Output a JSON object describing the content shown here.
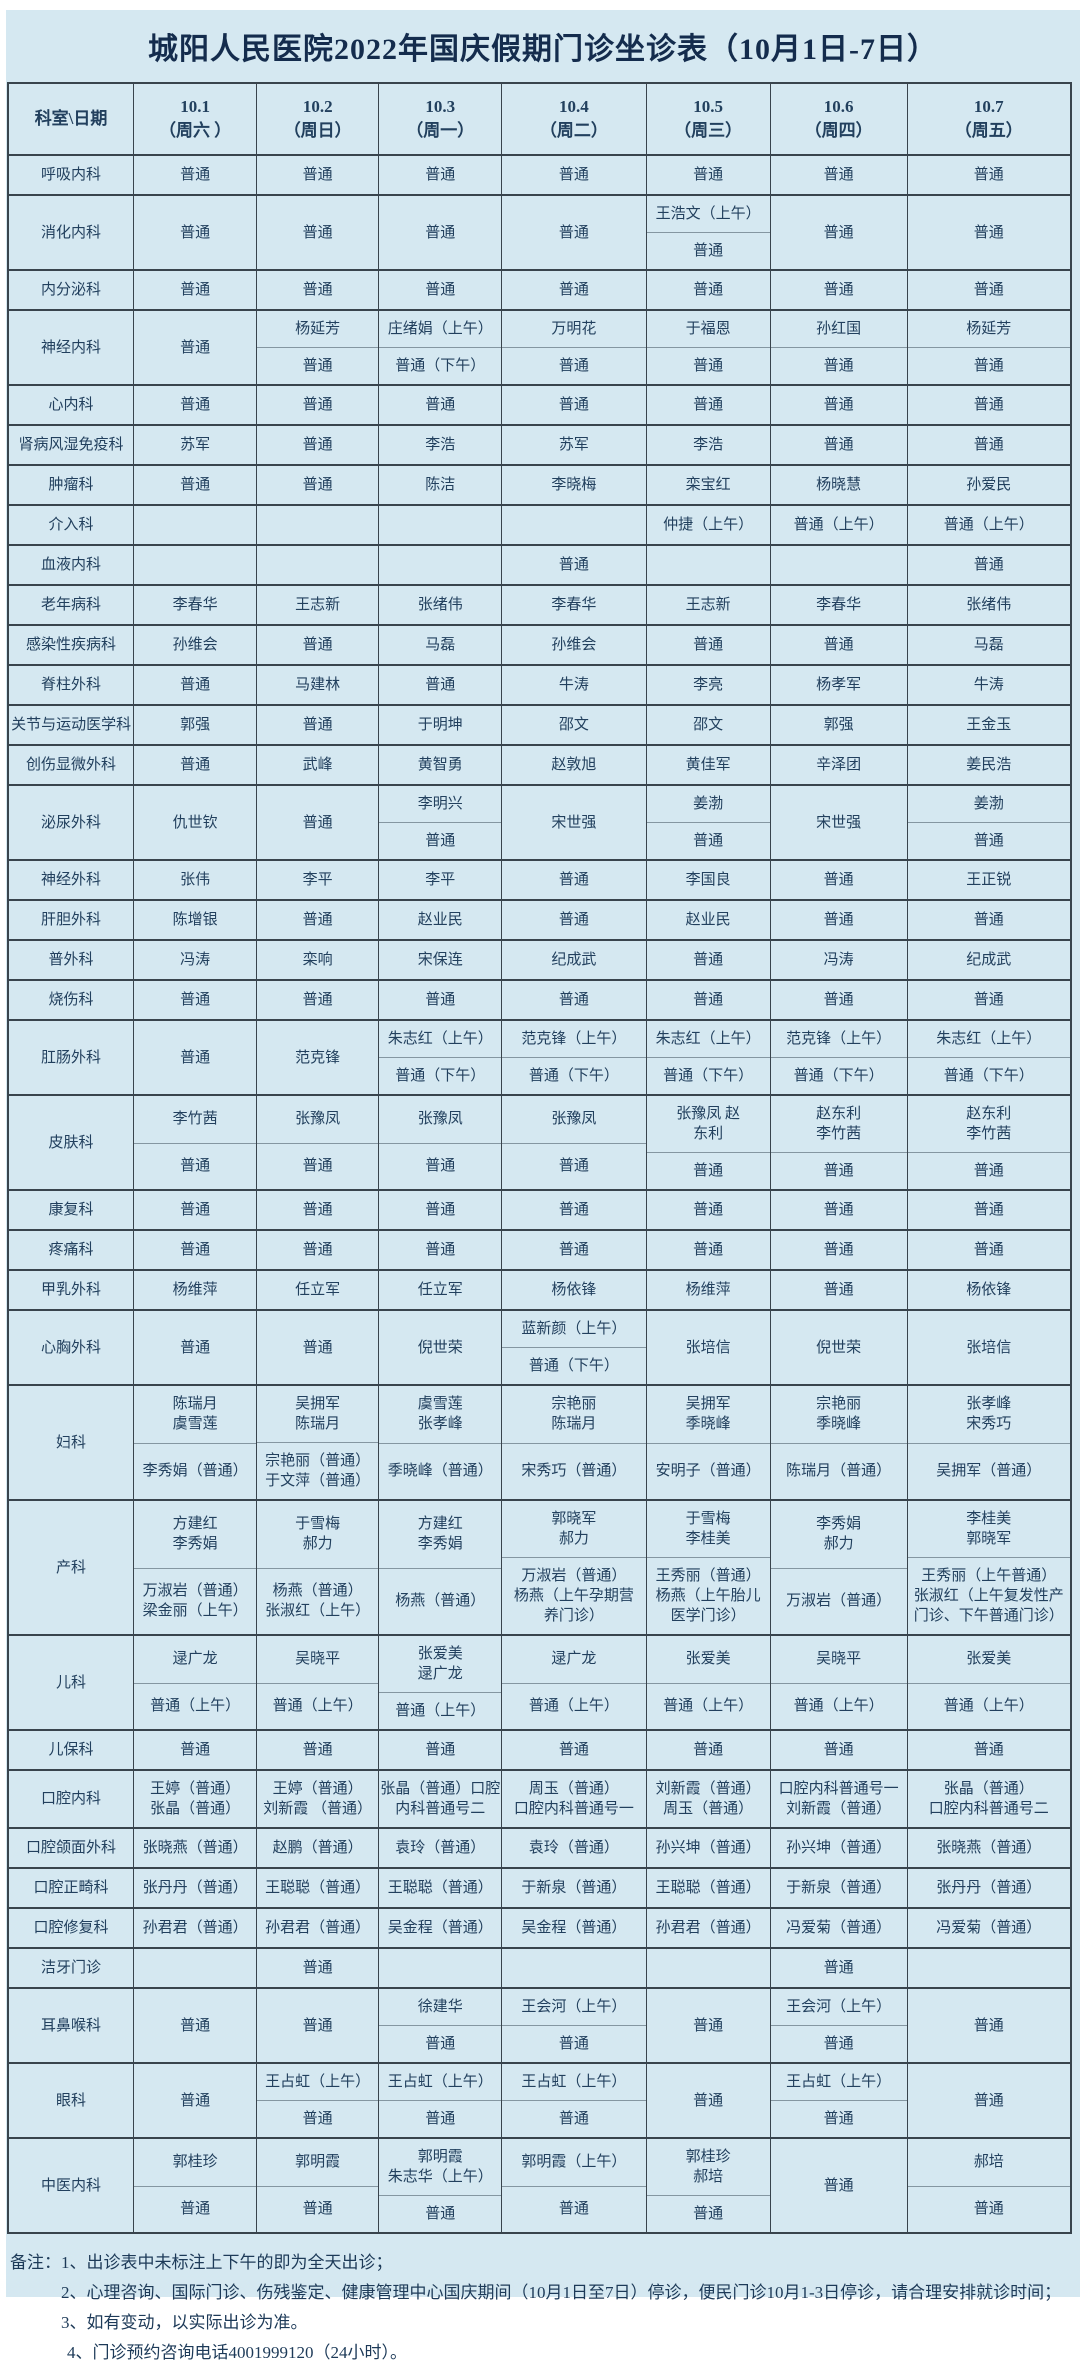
{
  "title": "城阳人民医院2022年国庆假期门诊坐诊表（10月1日-7日）",
  "colors": {
    "background": "#d5e8f1",
    "text": "#22405e",
    "title_text": "#142c4d",
    "border_dark": "#39444d",
    "border_split": "#8496a1"
  },
  "table": {
    "corner_header": "科室\\日期",
    "date_headers": [
      {
        "date": "10.1",
        "week": "（周六 ）"
      },
      {
        "date": "10.2",
        "week": "（周日）"
      },
      {
        "date": "10.3",
        "week": "（周一）"
      },
      {
        "date": "10.4",
        "week": "（周二）"
      },
      {
        "date": "10.5",
        "week": "（周三）"
      },
      {
        "date": "10.6",
        "week": "（周四）"
      },
      {
        "date": "10.7",
        "week": "（周五）"
      }
    ],
    "rows": [
      {
        "dept": "呼吸内科",
        "cells": [
          "普通",
          "普通",
          "普通",
          "普通",
          "普通",
          "普通",
          "普通"
        ]
      },
      {
        "dept": "消化内科",
        "cells": [
          "普通",
          "普通",
          "普通",
          "普通",
          {
            "split": [
              "王浩文（上午）",
              "普通"
            ]
          },
          "普通",
          "普通"
        ]
      },
      {
        "dept": "内分泌科",
        "cells": [
          "普通",
          "普通",
          "普通",
          "普通",
          "普通",
          "普通",
          "普通"
        ]
      },
      {
        "dept": "神经内科",
        "cells": [
          "普通",
          {
            "split": [
              "杨延芳",
              "普通"
            ]
          },
          {
            "split": [
              "庄绪娟（上午）",
              "普通（下午）"
            ]
          },
          {
            "split": [
              "万明花",
              "普通"
            ]
          },
          {
            "split": [
              "于福恩",
              "普通"
            ]
          },
          {
            "split": [
              "孙红国",
              "普通"
            ]
          },
          {
            "split": [
              "杨延芳",
              "普通"
            ]
          }
        ]
      },
      {
        "dept": "心内科",
        "cells": [
          "普通",
          "普通",
          "普通",
          "普通",
          "普通",
          "普通",
          "普通"
        ]
      },
      {
        "dept": "肾病风湿免疫科",
        "cells": [
          "苏军",
          "普通",
          "李浩",
          "苏军",
          "李浩",
          "普通",
          "普通"
        ]
      },
      {
        "dept": "肿瘤科",
        "cells": [
          "普通",
          "普通",
          "陈洁",
          "李晓梅",
          "栾宝红",
          "杨晓慧",
          "孙爱民"
        ]
      },
      {
        "dept": "介入科",
        "cells": [
          "",
          "",
          "",
          "",
          "仲捷（上午）",
          "普通（上午）",
          "普通（上午）"
        ]
      },
      {
        "dept": "血液内科",
        "cells": [
          "",
          "",
          "",
          "普通",
          "",
          "",
          "普通"
        ]
      },
      {
        "dept": "老年病科",
        "cells": [
          "李春华",
          "王志新",
          "张绪伟",
          "李春华",
          "王志新",
          "李春华",
          "张绪伟"
        ]
      },
      {
        "dept": "感染性疾病科",
        "cells": [
          "孙维会",
          "普通",
          "马磊",
          "孙维会",
          "普通",
          "普通",
          "马磊"
        ]
      },
      {
        "dept": "脊柱外科",
        "cells": [
          "普通",
          "马建林",
          "普通",
          "牛涛",
          "李亮",
          "杨孝军",
          "牛涛"
        ]
      },
      {
        "dept": "关节与运动医学科",
        "cells": [
          "郭强",
          "普通",
          "于明坤",
          "邵文",
          "邵文",
          "郭强",
          "王金玉"
        ]
      },
      {
        "dept": "创伤显微外科",
        "cells": [
          "普通",
          "武峰",
          "黄智勇",
          "赵敦旭",
          "黄佳军",
          "辛泽团",
          "姜民浩"
        ]
      },
      {
        "dept": "泌尿外科",
        "cells": [
          "仇世钦",
          "普通",
          {
            "split": [
              "李明兴",
              "普通"
            ]
          },
          "宋世强",
          {
            "split": [
              "姜渤",
              "普通"
            ]
          },
          "宋世强",
          {
            "split": [
              "姜渤",
              "普通"
            ]
          }
        ]
      },
      {
        "dept": "神经外科",
        "cells": [
          "张伟",
          "李平",
          "李平",
          "普通",
          "李国良",
          "普通",
          "王正锐"
        ]
      },
      {
        "dept": "肝胆外科",
        "cells": [
          "陈增银",
          "普通",
          "赵业民",
          "普通",
          "赵业民",
          "普通",
          "普通"
        ]
      },
      {
        "dept": "普外科",
        "cells": [
          "冯涛",
          "栾响",
          "宋保连",
          "纪成武",
          "普通",
          "冯涛",
          "纪成武"
        ]
      },
      {
        "dept": "烧伤科",
        "cells": [
          "普通",
          "普通",
          "普通",
          "普通",
          "普通",
          "普通",
          "普通"
        ]
      },
      {
        "dept": "肛肠外科",
        "cells": [
          "普通",
          "范克锋",
          {
            "split": [
              "朱志红（上午）",
              "普通（下午）"
            ]
          },
          {
            "split": [
              "范克锋（上午）",
              "普通（下午）"
            ]
          },
          {
            "split": [
              "朱志红（上午）",
              "普通（下午）"
            ]
          },
          {
            "split": [
              "范克锋（上午）",
              "普通（下午）"
            ]
          },
          {
            "split": [
              "朱志红（上午）",
              "普通（下午）"
            ]
          }
        ]
      },
      {
        "dept": "皮肤科",
        "cells": [
          {
            "split": [
              "李竹茜",
              "普通"
            ]
          },
          {
            "split": [
              "张豫凤",
              "普通"
            ]
          },
          {
            "split": [
              "张豫凤",
              "普通"
            ]
          },
          {
            "split": [
              "张豫凤",
              "普通"
            ]
          },
          {
            "split": [
              "张豫凤 赵\n东利",
              "普通"
            ]
          },
          {
            "split": [
              "赵东利\n李竹茜",
              "普通"
            ]
          },
          {
            "split": [
              "赵东利\n李竹茜",
              "普通"
            ]
          }
        ]
      },
      {
        "dept": "康复科",
        "cells": [
          "普通",
          "普通",
          "普通",
          "普通",
          "普通",
          "普通",
          "普通"
        ]
      },
      {
        "dept": "疼痛科",
        "cells": [
          "普通",
          "普通",
          "普通",
          "普通",
          "普通",
          "普通",
          "普通"
        ]
      },
      {
        "dept": "甲乳外科",
        "cells": [
          "杨维萍",
          "任立军",
          "任立军",
          "杨依锋",
          "杨维萍",
          "普通",
          "杨依锋"
        ]
      },
      {
        "dept": "心胸外科",
        "cells": [
          "普通",
          "普通",
          "倪世荣",
          {
            "split": [
              "蓝新颜（上午）",
              "普通（下午）"
            ]
          },
          "张培信",
          "倪世荣",
          "张培信"
        ]
      },
      {
        "dept": "妇科",
        "cells": [
          {
            "split": [
              "陈瑞月\n虞雪莲",
              "李秀娟（普通）"
            ]
          },
          {
            "split": [
              "吴拥军\n陈瑞月",
              "宗艳丽（普通）\n于文萍（普通）"
            ]
          },
          {
            "split": [
              "虞雪莲\n张孝峰",
              "季晓峰（普通）"
            ]
          },
          {
            "split": [
              "宗艳丽\n陈瑞月",
              "宋秀巧（普通）"
            ]
          },
          {
            "split": [
              "吴拥军\n季晓峰",
              "安明子（普通）"
            ]
          },
          {
            "split": [
              "宗艳丽\n季晓峰",
              "陈瑞月（普通）"
            ]
          },
          {
            "split": [
              "张孝峰\n宋秀巧",
              "吴拥军（普通）"
            ]
          }
        ]
      },
      {
        "dept": "产科",
        "cells": [
          {
            "split": [
              "方建红\n李秀娟",
              "万淑岩（普通）\n梁金丽（上午）"
            ]
          },
          {
            "split": [
              "于雪梅\n郝力",
              "杨燕（普通）\n张淑红（上午）"
            ]
          },
          {
            "split": [
              "方建红\n李秀娟",
              "杨燕（普通）"
            ]
          },
          {
            "split": [
              "郭晓军\n郝力",
              "万淑岩（普通）\n杨燕（上午孕期营\n养门诊）"
            ]
          },
          {
            "split": [
              "于雪梅\n李桂美",
              "王秀丽（普通）\n杨燕（上午胎儿\n医学门诊）"
            ]
          },
          {
            "split": [
              "李秀娟\n郝力",
              "万淑岩（普通）"
            ]
          },
          {
            "split": [
              "李桂美\n郭晓军",
              "王秀丽（上午普通）\n张淑红（上午复发性产\n门诊、下午普通门诊）"
            ]
          }
        ]
      },
      {
        "dept": "儿科",
        "cells": [
          {
            "split": [
              "逯广龙",
              "普通（上午）"
            ]
          },
          {
            "split": [
              "吴晓平",
              "普通（上午）"
            ]
          },
          {
            "split": [
              "张爱美\n逯广龙",
              "普通（上午）"
            ]
          },
          {
            "split": [
              "逯广龙",
              "普通（上午）"
            ]
          },
          {
            "split": [
              "张爱美",
              "普通（上午）"
            ]
          },
          {
            "split": [
              "吴晓平",
              "普通（上午）"
            ]
          },
          {
            "split": [
              "张爱美",
              "普通（上午）"
            ]
          }
        ]
      },
      {
        "dept": "儿保科",
        "cells": [
          "普通",
          "普通",
          "普通",
          "普通",
          "普通",
          "普通",
          "普通"
        ]
      },
      {
        "dept": "口腔内科",
        "cells": [
          "王婷（普通）\n张晶（普通）",
          "王婷（普通）\n刘新霞 （普通）",
          "张晶（普通）口腔\n内科普通号二",
          "周玉（普通）\n口腔内科普通号一",
          "刘新霞（普通）\n周玉（普通）",
          "口腔内科普通号一\n刘新霞（普通）",
          "张晶（普通）\n口腔内科普通号二"
        ]
      },
      {
        "dept": "口腔颌面外科",
        "cells": [
          "张晓燕（普通）",
          "赵鹏（普通）",
          "袁玲（普通）",
          "袁玲（普通）",
          "孙兴坤（普通）",
          "孙兴坤（普通）",
          "张晓燕（普通）"
        ]
      },
      {
        "dept": "口腔正畸科",
        "cells": [
          "张丹丹（普通）",
          "王聪聪（普通）",
          "王聪聪（普通）",
          "于新泉（普通）",
          "王聪聪（普通）",
          "于新泉（普通）",
          "张丹丹（普通）"
        ]
      },
      {
        "dept": "口腔修复科",
        "cells": [
          "孙君君（普通）",
          "孙君君（普通）",
          "吴金程（普通）",
          "吴金程（普通）",
          "孙君君（普通）",
          "冯爱菊（普通）",
          "冯爱菊（普通）"
        ]
      },
      {
        "dept": "洁牙门诊",
        "cells": [
          "",
          "普通",
          "",
          "",
          "",
          "普通",
          ""
        ]
      },
      {
        "dept": "耳鼻喉科",
        "cells": [
          "普通",
          "普通",
          {
            "split": [
              "徐建华",
              "普通"
            ]
          },
          {
            "split": [
              "王会河（上午）",
              "普通"
            ]
          },
          "普通",
          {
            "split": [
              "王会河（上午）",
              "普通"
            ]
          },
          "普通"
        ]
      },
      {
        "dept": "眼科",
        "cells": [
          "普通",
          {
            "split": [
              "王占虹（上午）",
              "普通"
            ]
          },
          {
            "split": [
              "王占虹（上午）",
              "普通"
            ]
          },
          {
            "split": [
              "王占虹（上午）",
              "普通"
            ]
          },
          "普通",
          {
            "split": [
              "王占虹（上午）",
              "普通"
            ]
          },
          "普通"
        ]
      },
      {
        "dept": "中医内科",
        "cells": [
          {
            "split": [
              "郭桂珍",
              "普通"
            ]
          },
          {
            "split": [
              "郭明霞",
              "普通"
            ]
          },
          {
            "split": [
              "郭明霞\n朱志华（上午）",
              "普通"
            ]
          },
          {
            "split": [
              "郭明霞（上午）",
              "普通"
            ]
          },
          {
            "split": [
              "郭桂珍\n郝培",
              "普通"
            ]
          },
          "普通",
          {
            "split": [
              "郝培",
              "普通"
            ]
          }
        ]
      }
    ]
  },
  "notes": {
    "prefix": "备注：",
    "lines": [
      "1、出诊表中未标注上下午的即为全天出诊；",
      "2、心理咨询、国际门诊、伤残鉴定、健康管理中心国庆期间（10月1日至7日）停诊，便民门诊10月1-3日停诊，请合理安排就诊时间；",
      "3、如有变动，以实际出诊为准。",
      "4、门诊预约咨询电话4001999120（24小时）。"
    ]
  }
}
